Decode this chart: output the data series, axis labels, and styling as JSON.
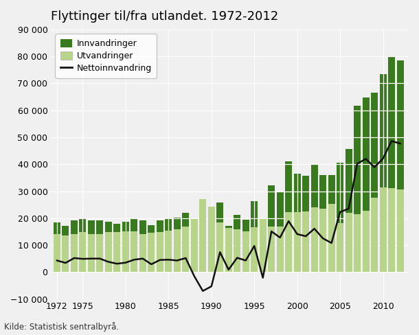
{
  "title": "Flyttinger til/fra utlandet. 1972-2012",
  "source": "Kilde: Statistisk sentralbyrå.",
  "years": [
    1972,
    1973,
    1974,
    1975,
    1976,
    1977,
    1978,
    1979,
    1980,
    1981,
    1982,
    1983,
    1984,
    1985,
    1986,
    1987,
    1988,
    1989,
    1990,
    1991,
    1992,
    1993,
    1994,
    1995,
    1996,
    1997,
    1998,
    1999,
    2000,
    2001,
    2002,
    2003,
    2004,
    2005,
    2006,
    2007,
    2008,
    2009,
    2010,
    2011,
    2012
  ],
  "innvandring": [
    18300,
    17100,
    19300,
    19700,
    19100,
    19200,
    18600,
    17900,
    18700,
    19800,
    19200,
    17400,
    19300,
    19900,
    20200,
    22000,
    18200,
    20000,
    19000,
    25800,
    17200,
    21300,
    19500,
    26300,
    17700,
    32100,
    29800,
    41200,
    36400,
    35800,
    40100,
    35900,
    36100,
    40500,
    45600,
    61800,
    64700,
    66600,
    73400,
    79800,
    78400
  ],
  "utvandring": [
    14000,
    13700,
    14100,
    14800,
    14100,
    14200,
    14800,
    14800,
    15200,
    15200,
    14200,
    14500,
    14800,
    15300,
    15900,
    16800,
    19700,
    27000,
    24300,
    18400,
    16300,
    16000,
    15200,
    16600,
    19800,
    17000,
    17000,
    22300,
    22300,
    22500,
    24000,
    23400,
    25300,
    18200,
    22100,
    21600,
    22700,
    27700,
    31300,
    31200,
    30700
  ],
  "netto": [
    4300,
    3400,
    5200,
    4900,
    5000,
    5000,
    3800,
    3100,
    3500,
    4600,
    5000,
    2900,
    4500,
    4600,
    4300,
    5200,
    -1500,
    -7000,
    -5300,
    7400,
    900,
    5300,
    4300,
    9700,
    -2100,
    15100,
    12800,
    18900,
    14100,
    13300,
    16100,
    12500,
    10800,
    22300,
    23500,
    40200,
    42000,
    38900,
    42100,
    48600,
    47700
  ],
  "bar_width": 0.8,
  "innvandring_color": "#3a7a1e",
  "utvandring_color": "#b8d48a",
  "netto_color": "#111111",
  "ylim": [
    -10000,
    90000
  ],
  "yticks": [
    -10000,
    0,
    10000,
    20000,
    30000,
    40000,
    50000,
    60000,
    70000,
    80000,
    90000
  ],
  "xtick_years": [
    1972,
    1975,
    1980,
    1985,
    1990,
    1995,
    2000,
    2005,
    2010
  ],
  "background_color": "#f0f0f0",
  "grid_color": "#ffffff",
  "legend_innvandring": "Innvandringer",
  "legend_utvandring": "Utvandringer",
  "legend_netto": "Nettoinnvandring",
  "title_fontsize": 13,
  "axis_fontsize": 9,
  "source_fontsize": 8.5
}
